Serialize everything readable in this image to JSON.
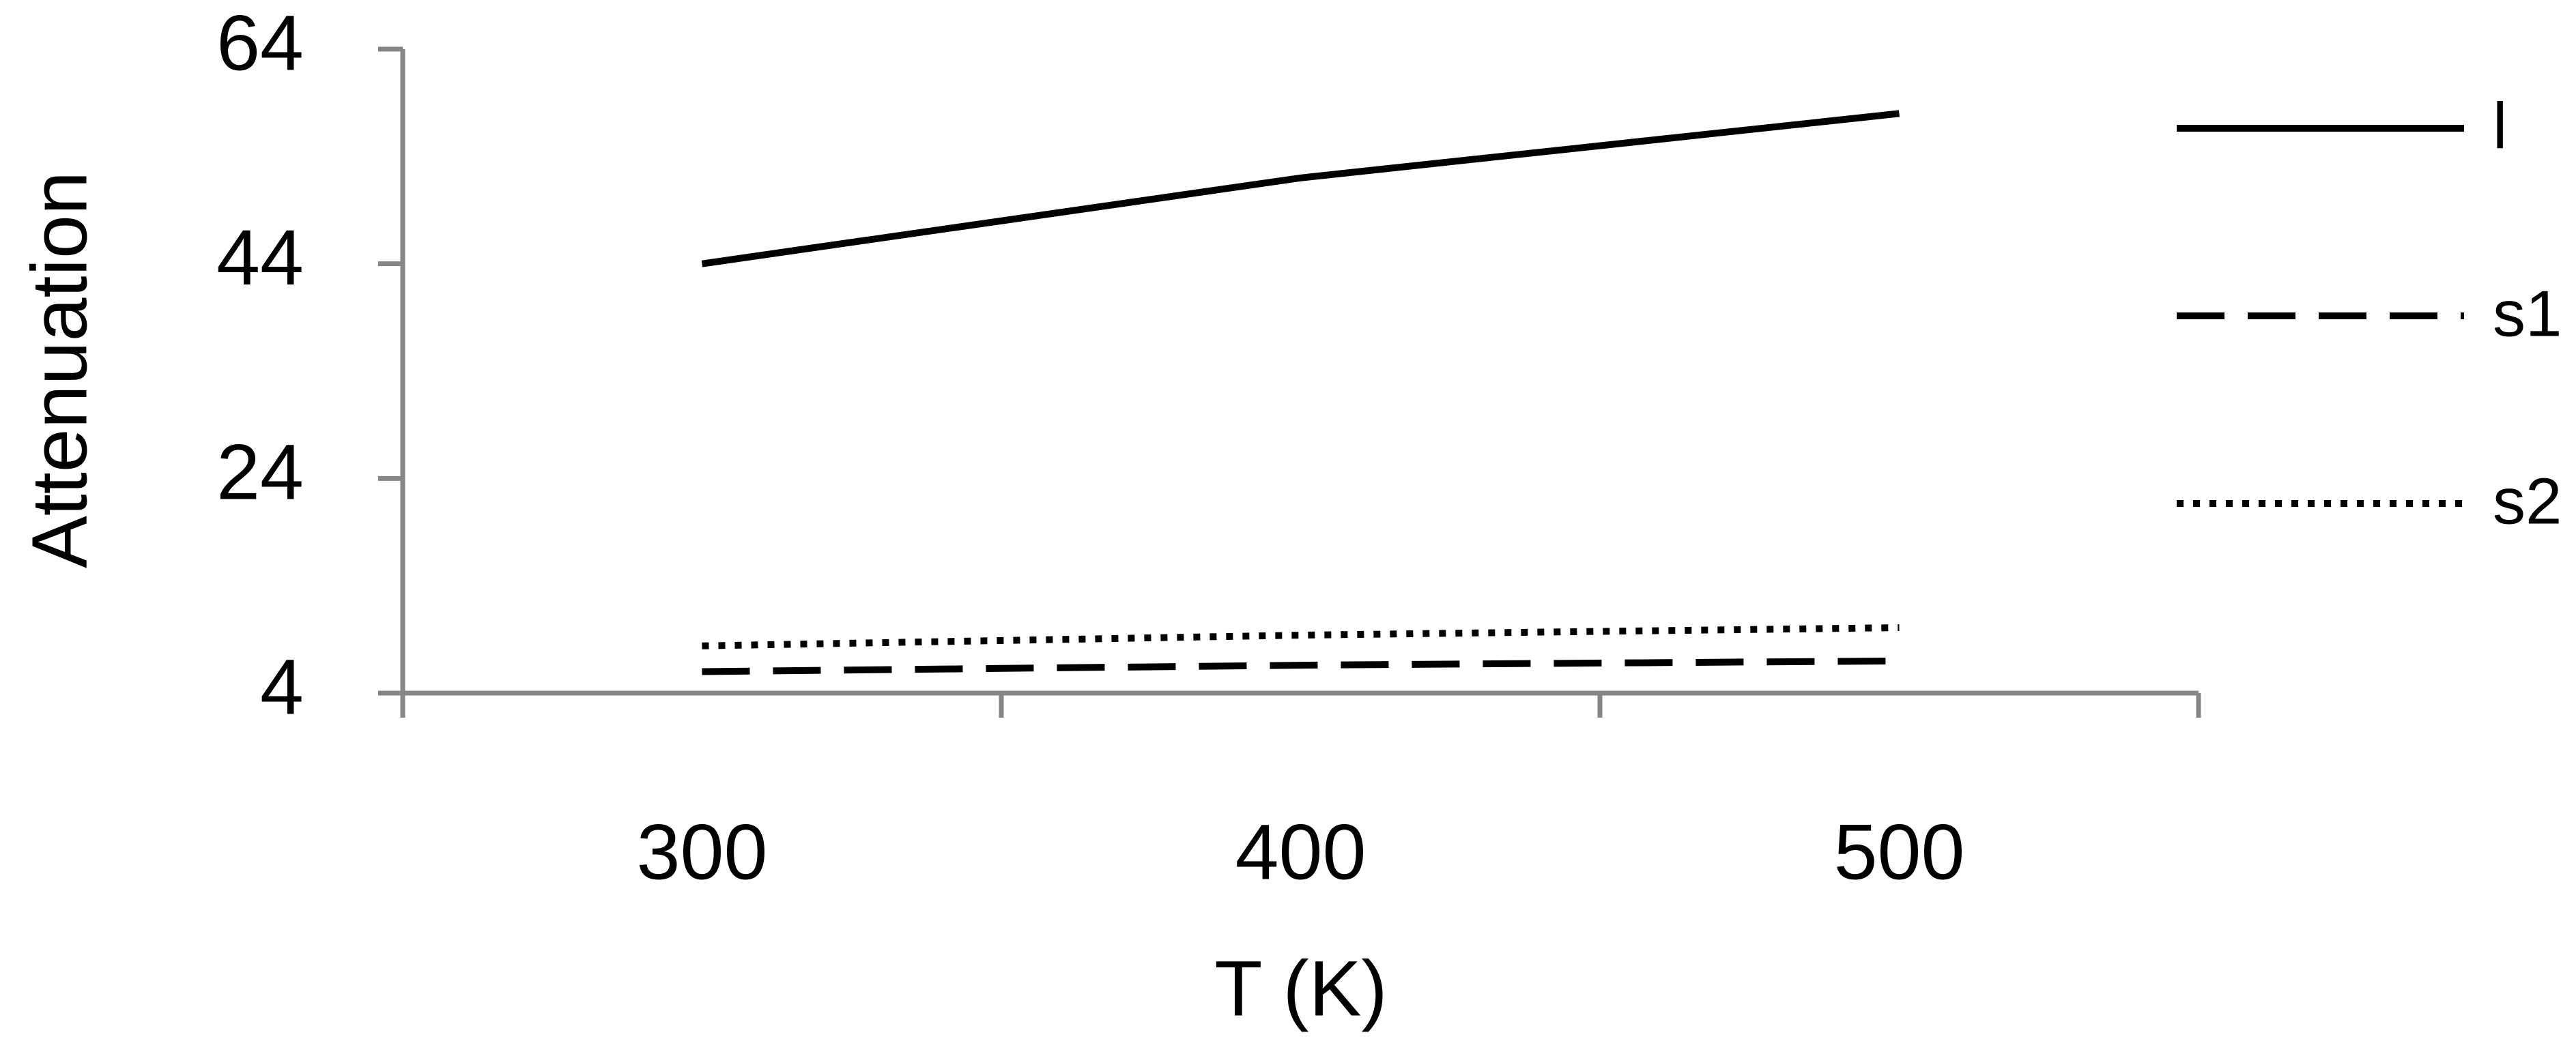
{
  "chart_data": {
    "type": "line",
    "x_label": "T (K)",
    "y_label": "Attenuation",
    "categories": [
      "300",
      "400",
      "500"
    ],
    "series": [
      {
        "name": "l",
        "color": "#000000",
        "dash": "solid",
        "values": [
          44,
          52,
          58
        ]
      },
      {
        "name": "s1",
        "color": "#000000",
        "dash": "dashed",
        "values": [
          6,
          6.6,
          7
        ]
      },
      {
        "name": "s2",
        "color": "#000000",
        "dash": "dotted",
        "values": [
          8.4,
          9.4,
          10.1
        ]
      }
    ],
    "ylim": [
      4,
      64
    ],
    "yticks": [
      4,
      24,
      44,
      64
    ],
    "grid": false,
    "legend": "right"
  }
}
